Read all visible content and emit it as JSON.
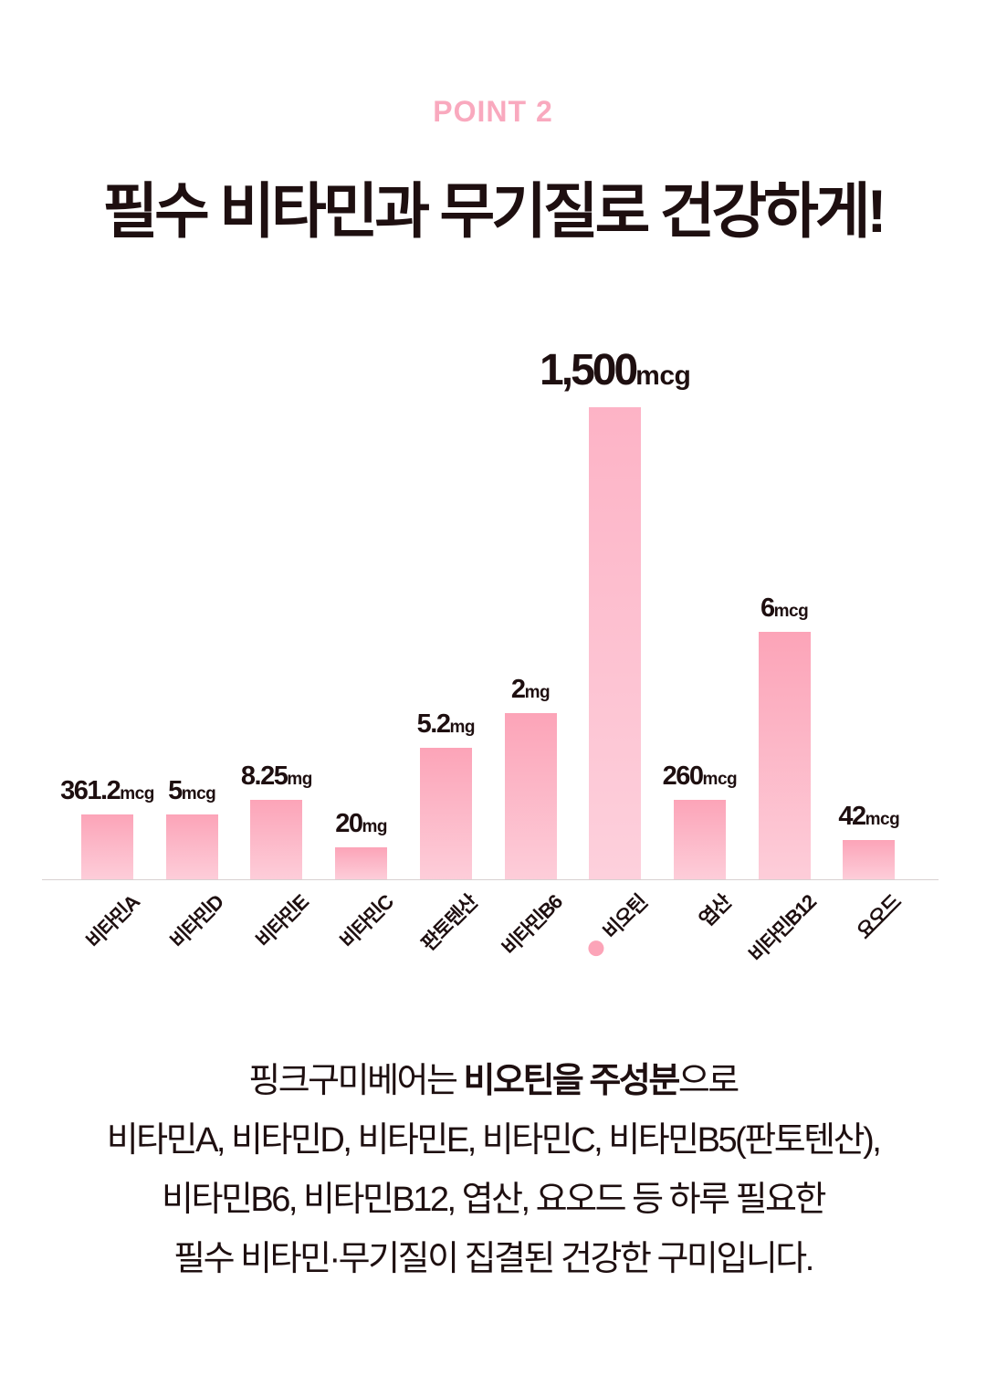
{
  "header": {
    "eyebrow": "POINT 2",
    "title": "필수 비타민과 무기질로 건강하게!"
  },
  "chart_data": {
    "type": "bar",
    "title": "",
    "xlabel": "",
    "ylabel": "",
    "grid": false,
    "highlight_category": "비오틴",
    "categories": [
      "비타민A",
      "비타민D",
      "비타민E",
      "비타민C",
      "판토텐산",
      "비타민B6",
      "비오틴",
      "엽산",
      "비타민B12",
      "요오드"
    ],
    "values": [
      361.2,
      5,
      8.25,
      20,
      5.2,
      2,
      1500,
      260,
      6,
      42
    ],
    "value_labels": [
      "361.2",
      "5",
      "8.25",
      "20",
      "5.2",
      "2",
      "1,500",
      "260",
      "6",
      "42"
    ],
    "units": [
      "mcg",
      "mcg",
      "mg",
      "mg",
      "mg",
      "mg",
      "mcg",
      "mcg",
      "mcg",
      "mcg"
    ],
    "relative_bar_levels": [
      0.137,
      0.137,
      0.168,
      0.068,
      0.279,
      0.352,
      1.0,
      0.168,
      0.524,
      0.083
    ],
    "colors": {
      "bar_top": "#fca4b8",
      "bar_bottom": "#fdcdd9",
      "highlight_dot": "#fca4b8"
    }
  },
  "description": {
    "line1": [
      "핑크구미베어는 ",
      "비오틴을 주성분",
      "으로"
    ],
    "line2": "비타민A, 비타민D, 비타민E, 비타민C, 비타민B5(판토텐산),",
    "line3": "비타민B6, 비타민B12, 엽산, 요오드 등 하루 필요한",
    "line4": "필수 비타민·무기질이 집결된 건강한 구미입니다."
  }
}
